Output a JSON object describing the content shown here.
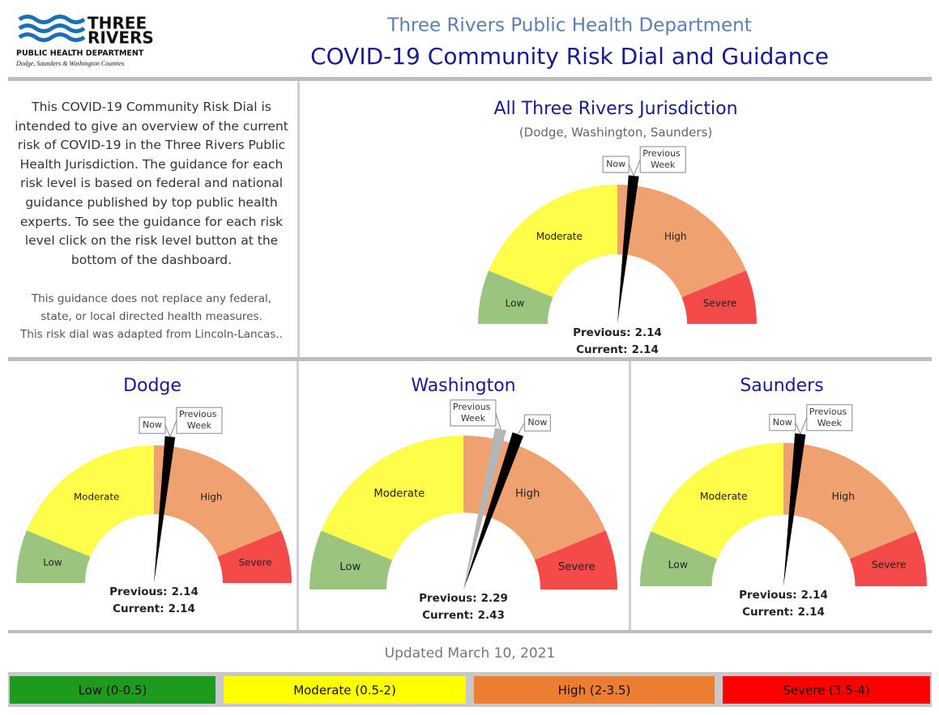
{
  "logo": {
    "name_top": "THREE",
    "name_bottom": "RIVERS",
    "department": "PUBLIC HEALTH DEPARTMENT",
    "counties": "Dodge, Saunders & Washington Counties"
  },
  "header": {
    "organization": "Three Rivers Public Health Department",
    "title": "COVID-19 Community Risk Dial and Guidance"
  },
  "description": {
    "text": "This COVID-19 Community Risk Dial is intended to give an overview of the current risk of COVID-19 in the Three Rivers Public Health Jurisdiction. The guidance for each risk level is based on federal and national guidance published by top public health experts. To see the guidance for each risk level click on the risk level button at the bottom of the dashboard.",
    "notes": [
      "This guidance does not replace any federal,",
      "state, or local directed health measures.",
      "This risk dial was adapted from Lincoln-Lancas.."
    ]
  },
  "scale": {
    "min": 0,
    "max": 4,
    "bands": [
      {
        "name": "Low",
        "from": 0,
        "to": 0.5,
        "color": "#9bc47e"
      },
      {
        "name": "Moderate",
        "from": 0.5,
        "to": 2,
        "color": "#fdfd4a"
      },
      {
        "name": "High",
        "from": 2,
        "to": 3.5,
        "color": "#efa170"
      },
      {
        "name": "Severe",
        "from": 3.5,
        "to": 4,
        "color": "#f44a4a"
      }
    ]
  },
  "chart_data": [
    {
      "type": "gauge",
      "title": "All Three Rivers Jurisdiction",
      "subtitle": "(Dodge, Washington, Saunders)",
      "series": [
        {
          "name": "Previous Week",
          "readout": "Previous:",
          "value": 2.14,
          "color": "#b5b5b5"
        },
        {
          "name": "Now",
          "readout": "Current:",
          "value": 2.14,
          "color": "#000000"
        }
      ]
    },
    {
      "type": "gauge",
      "title": "Dodge",
      "series": [
        {
          "name": "Previous Week",
          "readout": "Previous:",
          "value": 2.14,
          "color": "#b5b5b5"
        },
        {
          "name": "Now",
          "readout": "Current:",
          "value": 2.14,
          "color": "#000000"
        }
      ]
    },
    {
      "type": "gauge",
      "title": "Washington",
      "series": [
        {
          "name": "Previous Week",
          "readout": "Previous:",
          "value": 2.29,
          "color": "#b5b5b5"
        },
        {
          "name": "Now",
          "readout": "Current:",
          "value": 2.43,
          "color": "#000000"
        }
      ]
    },
    {
      "type": "gauge",
      "title": "Saunders",
      "series": [
        {
          "name": "Previous Week",
          "readout": "Previous:",
          "value": 2.14,
          "color": "#b5b5b5"
        },
        {
          "name": "Now",
          "readout": "Current:",
          "value": 2.14,
          "color": "#000000"
        }
      ]
    }
  ],
  "updated": "Updated March 10, 2021",
  "legend": [
    {
      "label": "Low (0-0.5)",
      "color": "#1e9a1e"
    },
    {
      "label": "Moderate (0.5-2)",
      "color": "#ffff00"
    },
    {
      "label": "High (2-3.5)",
      "color": "#ed7d31"
    },
    {
      "label": "Severe (3.5-4)",
      "color": "#ff0000"
    }
  ]
}
